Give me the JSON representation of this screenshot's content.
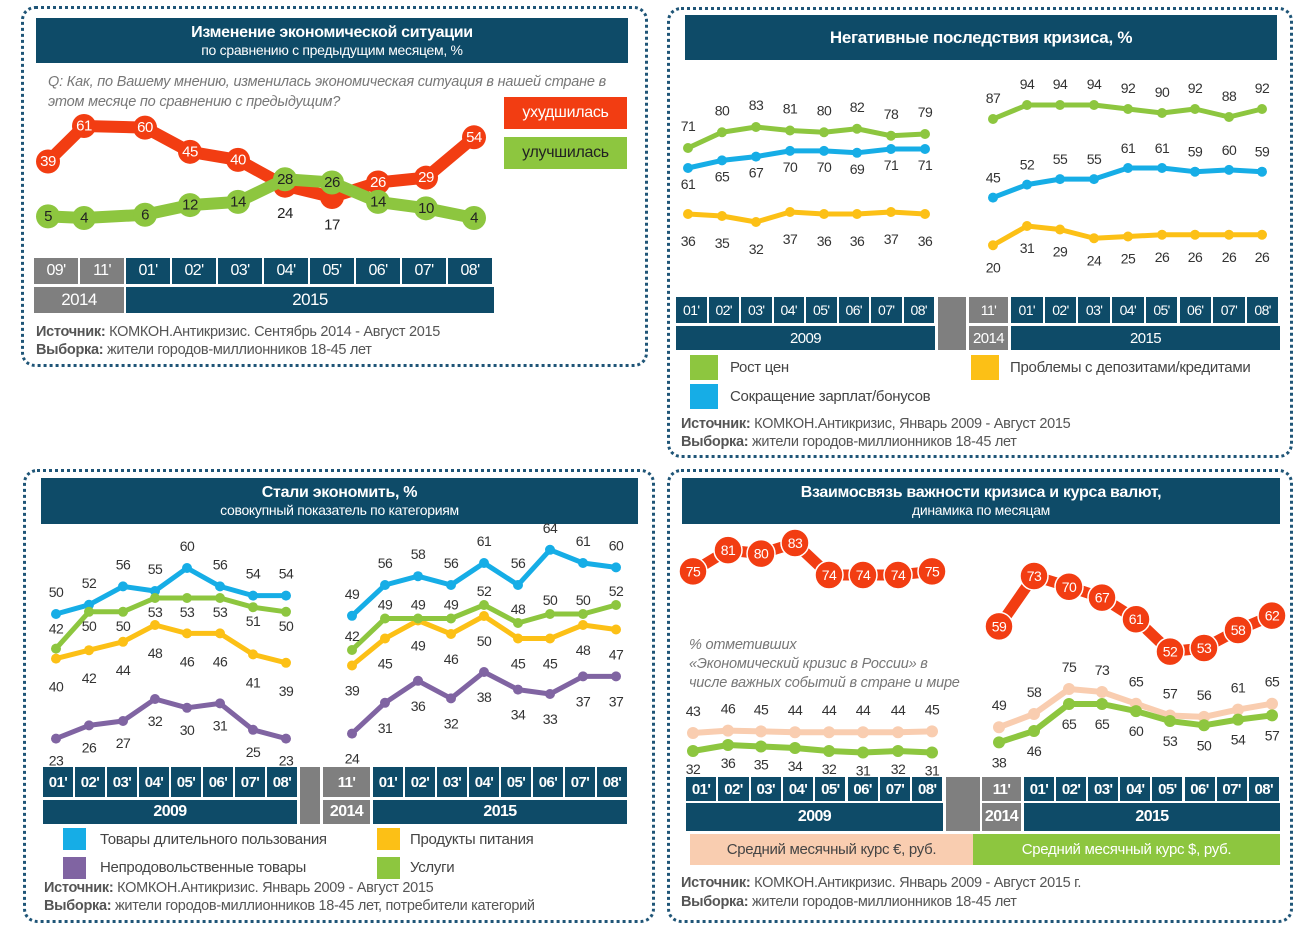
{
  "source_label": "Источник:",
  "sample_label": "Выборка:",
  "chart_data": [
    {
      "type": "line",
      "title": "Изменение экономической ситуации",
      "subtitle": "по сравнению с предыдущим месяцем, %",
      "question": "Q: Как, по Вашему мнению, изменилась экономическая ситуация в нашей стране в этом месяце по сравнению с предыдущим?",
      "categories": [
        "09'",
        "11'",
        "01'",
        "02'",
        "03'",
        "04'",
        "05'",
        "06'",
        "07'",
        "08'"
      ],
      "year_groups": [
        {
          "label": "2014",
          "count": 2
        },
        {
          "label": "2015",
          "count": 8
        }
      ],
      "series": [
        {
          "name": "ухудшилась",
          "color": "#f23d12",
          "values": [
            39,
            61,
            60,
            45,
            40,
            24,
            17,
            26,
            29,
            54
          ]
        },
        {
          "name": "улучшилась",
          "color": "#8dc63f",
          "values": [
            5,
            4,
            6,
            12,
            14,
            28,
            26,
            14,
            10,
            4
          ]
        }
      ],
      "source": "КОМКОН.Антикризис. Сентябрь 2014 - Август 2015",
      "sample": "жители городов-миллионников 18-45 лет"
    },
    {
      "type": "line",
      "title": "Негативные последствия кризиса, %",
      "categories": [
        "01'",
        "02'",
        "03'",
        "04'",
        "05'",
        "06'",
        "07'",
        "08'",
        "11'",
        "01'",
        "02'",
        "03'",
        "04'",
        "05'",
        "06'",
        "07'",
        "08'"
      ],
      "year_groups": [
        {
          "label": "2009",
          "count": 8
        },
        {
          "label": "2014",
          "count": 1
        },
        {
          "label": "2015",
          "count": 8
        }
      ],
      "series": [
        {
          "name": "Рост цен",
          "color": "#8dc63f",
          "values": [
            71,
            80,
            83,
            81,
            80,
            82,
            78,
            79,
            87,
            94,
            94,
            94,
            92,
            90,
            92,
            88,
            92
          ]
        },
        {
          "name": "Сокращение зарплат/бонусов",
          "color": "#16ade6",
          "values": [
            61,
            65,
            67,
            70,
            70,
            69,
            71,
            71,
            45,
            52,
            55,
            55,
            61,
            61,
            59,
            60,
            59
          ]
        },
        {
          "name": "Проблемы с депозитами/кредитами",
          "color": "#fcc016",
          "values": [
            36,
            35,
            32,
            37,
            36,
            36,
            37,
            36,
            20,
            31,
            29,
            24,
            25,
            26,
            26,
            26,
            26
          ]
        }
      ],
      "source": "КОМКОН.Антикризис, Январь 2009 - Август 2015",
      "sample": "жители городов-миллионников 18-45 лет"
    },
    {
      "type": "line",
      "title": "Стали экономить, %",
      "subtitle": "совокупный показатель по категориям",
      "categories": [
        "01'",
        "02'",
        "03'",
        "04'",
        "05'",
        "06'",
        "07'",
        "08'",
        "11'",
        "01'",
        "02'",
        "03'",
        "04'",
        "05'",
        "06'",
        "07'",
        "08'"
      ],
      "year_groups": [
        {
          "label": "2009",
          "count": 8
        },
        {
          "label": "2014",
          "count": 1
        },
        {
          "label": "2015",
          "count": 8
        }
      ],
      "series": [
        {
          "name": "Товары длительного пользования",
          "color": "#16ade6",
          "values": [
            50,
            52,
            56,
            55,
            60,
            56,
            54,
            54,
            49,
            56,
            58,
            56,
            61,
            56,
            64,
            61,
            60
          ]
        },
        {
          "name": "Продукты питания",
          "color": "#fcc016",
          "values": [
            40,
            42,
            44,
            48,
            46,
            46,
            41,
            39,
            39,
            45,
            49,
            46,
            50,
            45,
            45,
            48,
            47
          ]
        },
        {
          "name": "Непродовольственные товары",
          "color": "#8064a2",
          "values": [
            23,
            26,
            27,
            32,
            30,
            31,
            25,
            23,
            24,
            31,
            36,
            32,
            38,
            34,
            33,
            37,
            37
          ]
        },
        {
          "name": "Услуги",
          "color": "#8dc63f",
          "values": [
            42,
            50,
            50,
            53,
            53,
            53,
            51,
            50,
            42,
            49,
            49,
            49,
            52,
            48,
            50,
            50,
            52
          ]
        }
      ],
      "source": "КОМКОН.Антикризис. Январь 2009 - Август 2015",
      "sample": "жители городов-миллионников 18-45 лет, потребители категорий"
    },
    {
      "type": "line",
      "title": "Взаимосвязь важности кризиса и курса валют,",
      "subtitle": "динамика по месяцам",
      "note_lines": [
        "% отметивших",
        "«Экономический кризис в России» в",
        "числе важных событий в стране и мире"
      ],
      "categories": [
        "01'",
        "02'",
        "03'",
        "04'",
        "05'",
        "06'",
        "07'",
        "08'",
        "11'",
        "01'",
        "02'",
        "03'",
        "04'",
        "05'",
        "06'",
        "07'",
        "08'"
      ],
      "year_groups": [
        {
          "label": "2009",
          "count": 8
        },
        {
          "label": "2014",
          "count": 1
        },
        {
          "label": "2015",
          "count": 8
        }
      ],
      "series": [
        {
          "name": "Экономический кризис в России",
          "color": "#f23d12",
          "values": [
            75,
            81,
            80,
            83,
            74,
            74,
            74,
            75,
            59,
            73,
            70,
            67,
            61,
            52,
            53,
            58,
            62
          ]
        },
        {
          "name": "Средний месячный курс €, руб.",
          "color": "#f9cdb0",
          "values": [
            43,
            46,
            45,
            44,
            44,
            44,
            44,
            45,
            49,
            58,
            75,
            73,
            65,
            57,
            56,
            61,
            65
          ]
        },
        {
          "name": "Средний месячный курс $, руб.",
          "color": "#8dc63f",
          "values": [
            32,
            36,
            35,
            34,
            32,
            31,
            32,
            31,
            38,
            46,
            65,
            65,
            60,
            53,
            50,
            54,
            57
          ]
        }
      ],
      "source": "КОМКОН.Антикризис. Январь 2009 - Август 2015 г.",
      "sample": "жители городов-миллионников 18-45 лет"
    }
  ]
}
